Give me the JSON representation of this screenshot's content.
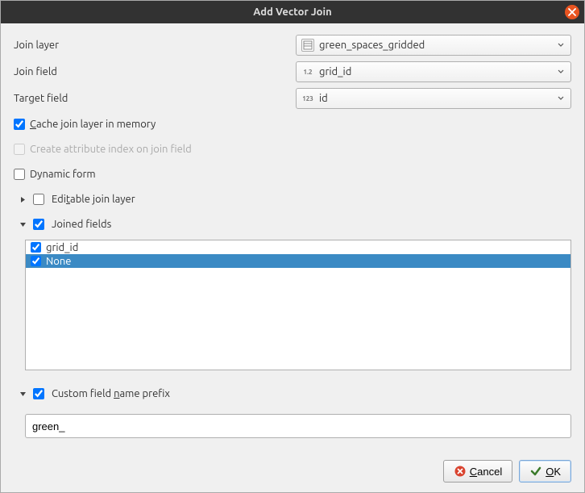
{
  "title": "Add Vector Join",
  "labels": {
    "join_layer": "Join layer",
    "join_field": "Join field",
    "target_field": "Target field",
    "cache": "Cache join layer in memory",
    "create_index": "Create attribute index on join field",
    "dynamic_form": "Dynamic form",
    "editable": "Editable join layer",
    "joined_fields": "Joined fields",
    "custom_prefix": "Custom field name prefix"
  },
  "combos": {
    "join_layer": "green_spaces_gridded",
    "join_field": "grid_id",
    "join_field_type": "1.2",
    "target_field": "id",
    "target_field_type": "123"
  },
  "checks": {
    "cache": true,
    "create_index": false,
    "dynamic_form": false,
    "editable": false,
    "joined_fields": true,
    "custom_prefix": true
  },
  "fieldlist": [
    {
      "label": "grid_id",
      "checked": true,
      "selected": false
    },
    {
      "label": "None",
      "checked": true,
      "selected": true
    }
  ],
  "prefix_value": "green_",
  "buttons": {
    "cancel": "Cancel",
    "ok": "OK"
  }
}
